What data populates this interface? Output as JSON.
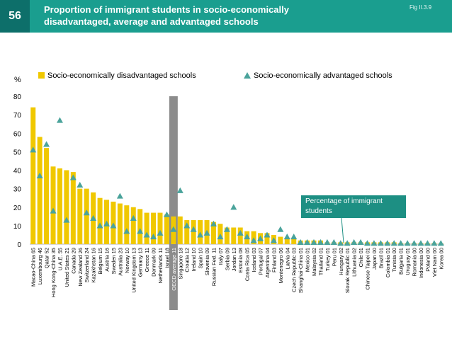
{
  "header": {
    "page_number": "56",
    "title": "Proportion of immigrant students in socio-economically disadvantaged, average and advantaged schools",
    "fig_label": "Fig II.3.9"
  },
  "colors": {
    "header_bg": "#1a9e8f",
    "page_num_bg": "#0d6f6a",
    "bar": "#f0c800",
    "marker": "#4aa39b",
    "oecd_bar": "#8c8c8c",
    "callout_bg": "#1d8f83"
  },
  "annotation": {
    "text": "Percentage of immigrant students"
  },
  "chart_data": {
    "type": "bar",
    "ylabel": "%",
    "ylim": [
      0,
      80
    ],
    "yticks": [
      0,
      10,
      20,
      30,
      40,
      50,
      60,
      70,
      80
    ],
    "legend": [
      "Socio-economically disadvantaged schools",
      "Socio-economically advantaged schools"
    ],
    "categories": [
      "Macao-China",
      "Luxembourg",
      "Qatar",
      "Hong Kong-China",
      "U.A.E.",
      "United States",
      "Canada",
      "New Zealand",
      "Switzerland",
      "Kazakhstan",
      "Belgium",
      "Austria",
      "Sweden",
      "Australia",
      "Norway",
      "United Kingdom",
      "Germany",
      "Greece",
      "Denmark",
      "Netherlands",
      "Israel",
      "OECD average",
      "Singapore",
      "Croatia",
      "Ireland",
      "Spain",
      "Slovenia",
      "Russian Fed.",
      "Italy",
      "Serbia",
      "Jordan",
      "Estonia",
      "Costa Rica",
      "Iceland",
      "Portugal",
      "Argentina",
      "Finland",
      "Montenegro",
      "Latvia",
      "Czech Republic",
      "Shanghai-China",
      "Mexico",
      "Malaysia",
      "Thailand",
      "Turkey",
      "Peru",
      "Hungary",
      "Slovak Republic",
      "Lithuania",
      "Chile",
      "Chinese Taipei",
      "Japan",
      "Brazil",
      "Colombia",
      "Tunisia",
      "Bulgaria",
      "Uruguay",
      "Romania",
      "Indonesia",
      "Poland",
      "Viet Nam",
      "Korea"
    ],
    "category_labels": [
      "Macao-China 65",
      "Luxembourg 46",
      "Qatar 52",
      "Hong Kong-China 35",
      "U.A.E. 55",
      "United States 21",
      "Canada 29",
      "New Zealand 26",
      "Switzerland 24",
      "Kazakhstan 16",
      "Belgium 15",
      "Austria 16",
      "Sweden 15",
      "Australia 23",
      "Norway 10",
      "United Kingdom 13",
      "Germany 13",
      "Greece 11",
      "Denmark 09",
      "Netherlands 11",
      "Israel 18",
      "OECD average 11",
      "Singapore 18",
      "Croatia 12",
      "Ireland 10",
      "Spain 10",
      "Slovenia 09",
      "Russian Fed. 11",
      "Italy 07",
      "Serbia 09",
      "Jordan 13",
      "Estonia 08",
      "Costa Rica 05",
      "Iceland 03",
      "Portugal 07",
      "Argentina 04",
      "Finland 03",
      "Montenegro 06",
      "Latvia 04",
      "Czech Republic 03",
      "Shanghai-China 01",
      "Mexico 01",
      "Malaysia 02",
      "Thailand 01",
      "Turkey 01",
      "Peru 01",
      "Hungary 02",
      "Slovak Republic 01",
      "Lithuania 02",
      "Chile 01",
      "Chinese Taipei 01",
      "Japan 00",
      "Brazil 01",
      "Colombia 01",
      "Tunisia 00",
      "Bulgaria 01",
      "Uruguay 01",
      "Romania 00",
      "Indonesia 00",
      "Poland 00",
      "Viet Nam 00",
      "Korea 00"
    ],
    "oecd_index": 21,
    "series": [
      {
        "name": "Socio-economically disadvantaged schools",
        "kind": "bar",
        "values": [
          74,
          58,
          52,
          42,
          41,
          40,
          39,
          30,
          30,
          28,
          25,
          24,
          23,
          22,
          21,
          20,
          19,
          17,
          17,
          17,
          16,
          15,
          15,
          13,
          13,
          13,
          13,
          12,
          11,
          9,
          9,
          9,
          7,
          7,
          6,
          6,
          5,
          4,
          3,
          3,
          2,
          2,
          2,
          2,
          1,
          1,
          1,
          1,
          1,
          1,
          1,
          1,
          1,
          1,
          1,
          0.5,
          0.5,
          0.5,
          0.5,
          0.5,
          0.5,
          0.3
        ]
      },
      {
        "name": "Socio-economically advantaged schools",
        "kind": "marker",
        "values": [
          51,
          37,
          54,
          18,
          67,
          13,
          36,
          32,
          17,
          14,
          10,
          11,
          10,
          26,
          7,
          14,
          7,
          5,
          4,
          6,
          16,
          8,
          29,
          10,
          8,
          5,
          6,
          11,
          4,
          8,
          20,
          6,
          4,
          2,
          3,
          5,
          2,
          8,
          4,
          4,
          1,
          1,
          1,
          1,
          1,
          1,
          0.5,
          0.5,
          1,
          1,
          0.5,
          0.5,
          0.5,
          0.5,
          0.5,
          0.5,
          0.5,
          0.5,
          0.5,
          0.5,
          0.5,
          0.5
        ]
      }
    ]
  }
}
